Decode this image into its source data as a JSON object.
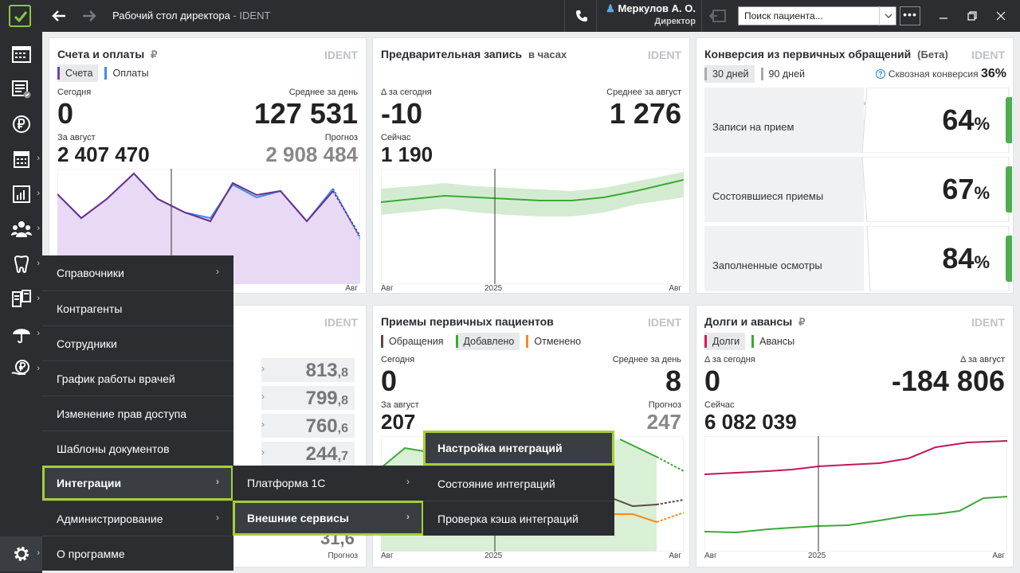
{
  "titlebar": {
    "title": "Рабочий стол директора",
    "title_suffix": " - IDENT",
    "user_name": "Меркулов А. О.",
    "user_role": "Директор",
    "search_placeholder": "Поиск пациента...",
    "more": "•••"
  },
  "panels": {
    "invoices": {
      "title": "Счета и оплаты",
      "title_unit": "₽",
      "badge": "IDENT",
      "legend": [
        "Счета",
        "Оплаты"
      ],
      "today_label": "Сегодня",
      "today_value": "0",
      "avg_label": "Среднее за день",
      "avg_value": "127 531",
      "month_label": "За август",
      "month_value": "2 407 470",
      "forecast_label": "Прогноз",
      "forecast_value": "2 908 484",
      "axis_right": "Авг"
    },
    "prebook": {
      "title": "Предварительная запись",
      "title_sub": "в часах",
      "badge": "IDENT",
      "delta_label": "Δ за сегодня",
      "delta_value": "-10",
      "avg_label": "Среднее за август",
      "avg_value": "1 276",
      "now_label": "Сейчас",
      "now_value": "1 190",
      "axis": [
        "Авг",
        "2025",
        "Авг"
      ]
    },
    "conversion": {
      "title": "Конверсия из первичных обращений",
      "title_sub": "(Бета)",
      "badge": "IDENT",
      "tabs": [
        "30 дней",
        "90 дней"
      ],
      "total_label": "Сквозная конверсия",
      "total_value": "36%",
      "rows": [
        {
          "label": "Записи на прием",
          "value": "64"
        },
        {
          "label": "Состоявшиеся приемы",
          "value": "67"
        },
        {
          "label": "Заполненные осмотры",
          "value": "84"
        }
      ],
      "pct": "%"
    },
    "hidden": {
      "badge": "IDENT",
      "rows": [
        {
          "int": "813",
          "dec": ",8"
        },
        {
          "int": "799",
          "dec": ",8"
        },
        {
          "int": "760",
          "dec": ",6"
        },
        {
          "int": "244",
          "dec": ",7"
        }
      ],
      "last_value": "31,6",
      "last_label": "Прогноз"
    },
    "primary": {
      "title": "Приемы первичных пациентов",
      "badge": "IDENT",
      "legend": [
        "Обращения",
        "Добавлено",
        "Отменено"
      ],
      "today_label": "Сегодня",
      "today_value": "0",
      "avg_label": "Среднее за день",
      "avg_value": "8",
      "month_label": "За август",
      "month_value": "207",
      "forecast_label": "Прогноз",
      "forecast_value": "247",
      "axis": [
        "Авг",
        "2025",
        "Авг"
      ]
    },
    "debts": {
      "title": "Долги и авансы",
      "title_unit": "₽",
      "badge": "IDENT",
      "legend": [
        "Долги",
        "Авансы"
      ],
      "delta_label": "Δ за сегодня",
      "delta_value": "0",
      "month_label": "Δ за август",
      "month_value": "-184 806",
      "now_label": "Сейчас",
      "now_value": "6 082 039",
      "axis": [
        "Авг",
        "2025",
        "Авг"
      ]
    }
  },
  "menu_main": [
    "Справочники",
    "Контрагенты",
    "Сотрудники",
    "График работы врачей",
    "Изменение прав доступа",
    "Шаблоны документов",
    "Интеграции",
    "Администрирование",
    "О программе"
  ],
  "menu_integrations": [
    "Платформа 1С",
    "Внешние сервисы"
  ],
  "menu_external": [
    "Настройка интеграций",
    "Состояние интеграций",
    "Проверка кэша интеграций"
  ],
  "colors": {
    "accent": "#a6ce39",
    "invoices": "#7b3fa0",
    "payments": "#3a8ee6",
    "green": "#3aaa35",
    "debts": "#d6195a",
    "cancel": "#f28c1c",
    "appeals": "#5a4a42"
  }
}
